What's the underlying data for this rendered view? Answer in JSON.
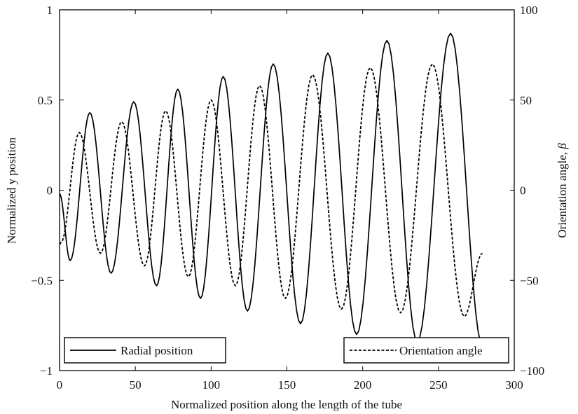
{
  "chart_data": {
    "type": "line",
    "xlabel": "Normalized position along the length of the tube",
    "ylabel_left": "Normalized y position",
    "ylabel_right_prefix": "Orientation angle, ",
    "ylabel_right_symbol": "β",
    "xlim": [
      0,
      300
    ],
    "ylim_left": [
      -1,
      1
    ],
    "ylim_right": [
      -100,
      100
    ],
    "x_ticks": [
      0,
      50,
      100,
      150,
      200,
      250,
      300
    ],
    "x_tick_labels": [
      "0",
      "50",
      "100",
      "150",
      "200",
      "250",
      "300"
    ],
    "y_left_ticks": [
      -1,
      -0.5,
      0,
      0.5,
      1
    ],
    "y_left_tick_labels": [
      "−1",
      "−0.5",
      "0",
      "0.5",
      "1"
    ],
    "y_right_ticks": [
      -100,
      -50,
      0,
      50,
      100
    ],
    "y_right_tick_labels": [
      "−100",
      "−50",
      "0",
      "50",
      "100"
    ],
    "grid": false,
    "series": [
      {
        "name": "Radial position",
        "axis": "left",
        "style": "solid",
        "color": "#000000",
        "x": [
          0,
          7,
          20,
          34,
          49,
          64,
          78,
          93,
          108,
          124,
          141,
          159,
          177,
          196,
          216,
          236,
          258,
          279
        ],
        "y": [
          -0.02,
          -0.39,
          0.43,
          -0.46,
          0.49,
          -0.53,
          0.56,
          -0.6,
          0.63,
          -0.67,
          0.7,
          -0.74,
          0.76,
          -0.8,
          0.83,
          -0.84,
          0.87,
          -0.86
        ]
      },
      {
        "name": "Orientation angle",
        "axis": "right",
        "style": "dashed",
        "color": "#000000",
        "x": [
          0,
          1,
          13,
          27,
          41,
          56,
          70,
          85,
          100,
          116,
          132,
          149,
          167,
          186,
          205,
          225,
          246,
          267,
          279
        ],
        "y": [
          -30,
          -29,
          32,
          -35,
          38,
          -42,
          44,
          -48,
          50,
          -53,
          58,
          -60,
          64,
          -66,
          68,
          -68,
          70,
          -70,
          -35
        ]
      }
    ],
    "legend": {
      "left_label": "Radial position",
      "right_label": "Orientation angle"
    }
  }
}
